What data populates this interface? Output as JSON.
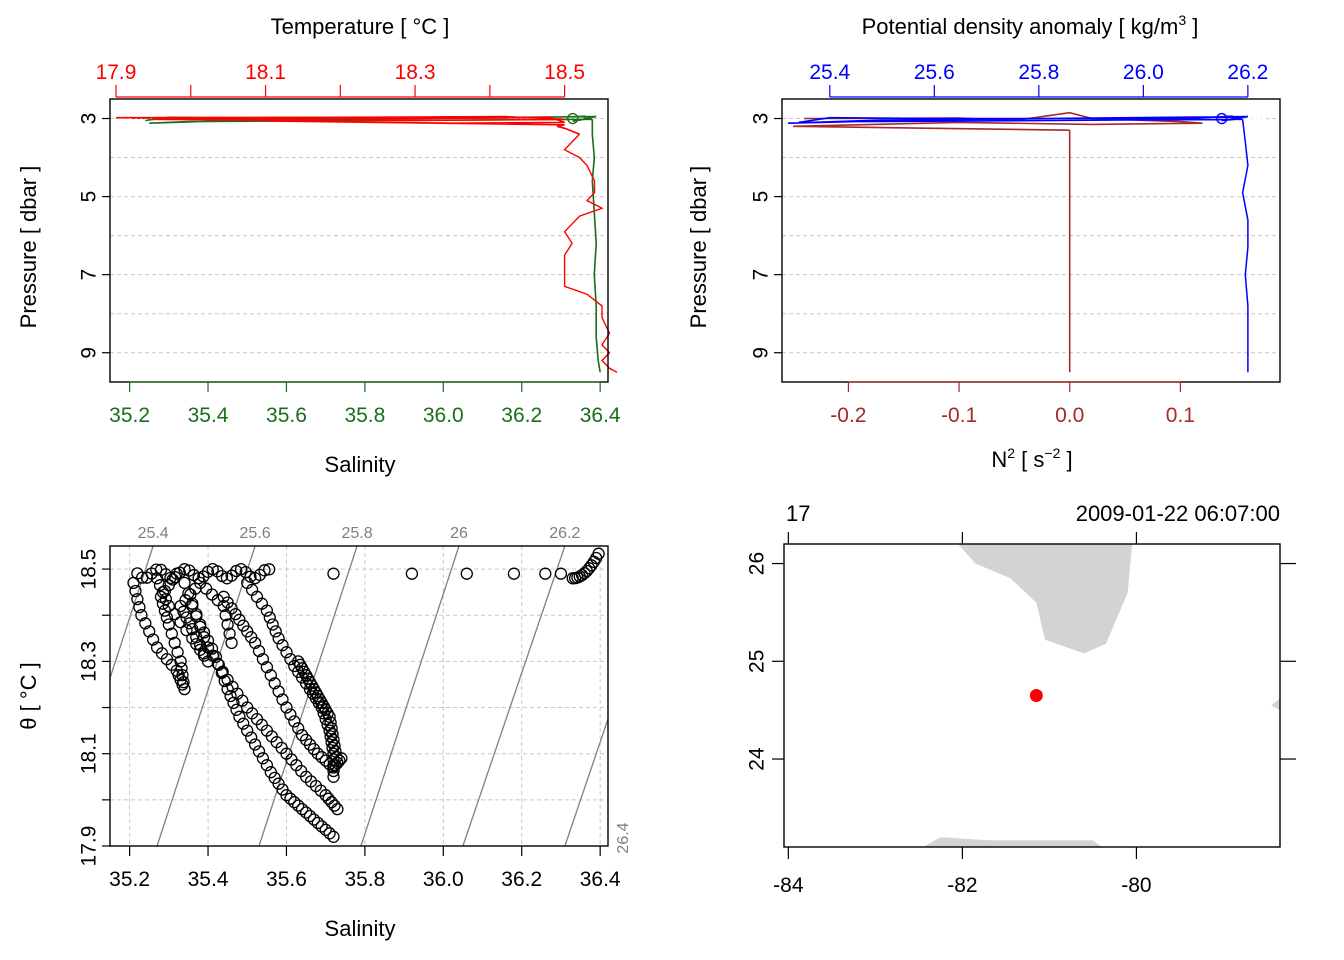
{
  "colors": {
    "temperature": "#ff0000",
    "salinity": "#1a6e1a",
    "density": "#0000ff",
    "n2": "#a52a2a",
    "isopycnal": "#808080",
    "land": "#d3d3d3",
    "station": "#ff0000"
  },
  "panels": {
    "profile_ts": {
      "top_label": "Temperature [ °C ]",
      "bottom_label": "Salinity",
      "left_label": "Pressure [ dbar ]"
    },
    "profile_density": {
      "top_label_main": "Potential density anomaly [ kg/m",
      "top_label_sup": "3",
      "top_label_end": " ]",
      "bottom_label_main": "N",
      "bottom_label_sup1": "2",
      "bottom_label_mid": " [ s",
      "bottom_label_sup2": "−2",
      "bottom_label_end": " ]",
      "left_label": "Pressure [ dbar ]"
    },
    "ts_diagram": {
      "xlabel": "Salinity",
      "ylabel": "θ [ °C ]"
    },
    "map": {
      "header_left": "17",
      "header_right": "2009-01-22 06:07:00"
    }
  },
  "chart_data": [
    {
      "type": "line",
      "name": "profile_ts",
      "y_axis": {
        "range": [
          2.5,
          9.75
        ],
        "reversed": true,
        "ticks": [
          3,
          5,
          7,
          9
        ],
        "gridlines": [
          3,
          4,
          5,
          6,
          7,
          8,
          9
        ]
      },
      "top_axis": {
        "range": [
          17.9,
          18.55
        ],
        "ticks": [
          "17.9",
          "18.1",
          "18.3",
          "18.5"
        ],
        "minor_ticks": [
          18.0,
          18.2,
          18.4
        ]
      },
      "bottom_axis": {
        "range": [
          35.15,
          36.42
        ],
        "ticks": [
          "35.2",
          "35.4",
          "35.6",
          "35.8",
          "36.0",
          "36.2",
          "36.4"
        ]
      },
      "series": [
        {
          "variable": "temperature",
          "surface": [
            [
              17.9,
              2.98
            ],
            [
              18.2,
              2.97
            ],
            [
              18.42,
              2.95
            ],
            [
              18.5,
              3.02
            ],
            [
              18.3,
              3.05
            ],
            [
              18.0,
              3.0
            ],
            [
              17.95,
              3.02
            ],
            [
              18.1,
              3.04
            ],
            [
              18.48,
              2.97
            ],
            [
              18.5,
              3.1
            ],
            [
              18.35,
              3.12
            ],
            [
              18.1,
              3.06
            ],
            [
              18.5,
              3.16
            ],
            [
              18.49,
              3.2
            ],
            [
              18.5,
              3.25
            ],
            [
              18.52,
              3.4
            ]
          ],
          "profile": [
            [
              18.52,
              3.4
            ],
            [
              18.51,
              3.6
            ],
            [
              18.5,
              3.8
            ],
            [
              18.52,
              4.0
            ],
            [
              18.53,
              4.2
            ],
            [
              18.54,
              4.6
            ],
            [
              18.54,
              4.9
            ],
            [
              18.53,
              5.1
            ],
            [
              18.55,
              5.3
            ],
            [
              18.52,
              5.5
            ],
            [
              18.5,
              5.9
            ],
            [
              18.51,
              6.2
            ],
            [
              18.5,
              6.5
            ],
            [
              18.5,
              7.0
            ],
            [
              18.5,
              7.3
            ],
            [
              18.53,
              7.5
            ],
            [
              18.55,
              7.8
            ],
            [
              18.55,
              8.1
            ],
            [
              18.56,
              8.5
            ],
            [
              18.55,
              8.8
            ],
            [
              18.56,
              9.0
            ],
            [
              18.55,
              9.2
            ],
            [
              18.56,
              9.4
            ],
            [
              18.57,
              9.5
            ]
          ]
        },
        {
          "variable": "salinity",
          "surface": [
            [
              35.24,
              3.05
            ],
            [
              35.3,
              2.97
            ],
            [
              35.4,
              2.98
            ],
            [
              35.6,
              3.0
            ],
            [
              35.8,
              3.0
            ],
            [
              36.1,
              2.99
            ],
            [
              36.3,
              2.97
            ],
            [
              36.36,
              2.94
            ],
            [
              36.36,
              3.02
            ],
            [
              36.33,
              3.07
            ],
            [
              36.39,
              2.95
            ],
            [
              35.5,
              3.04
            ],
            [
              35.25,
              3.12
            ],
            [
              35.35,
              3.08
            ],
            [
              36.38,
              3.02
            ]
          ],
          "profile": [
            [
              36.38,
              3.02
            ],
            [
              36.38,
              3.4
            ],
            [
              36.385,
              4.0
            ],
            [
              36.38,
              4.6
            ],
            [
              36.385,
              5.4
            ],
            [
              36.39,
              6.2
            ],
            [
              36.385,
              7.0
            ],
            [
              36.39,
              7.8
            ],
            [
              36.39,
              8.6
            ],
            [
              36.395,
              9.2
            ],
            [
              36.4,
              9.5
            ]
          ]
        }
      ]
    },
    {
      "type": "line",
      "name": "profile_density",
      "y_axis": {
        "range": [
          2.5,
          9.75
        ],
        "reversed": true,
        "ticks": [
          3,
          5,
          7,
          9
        ],
        "gridlines": [
          3,
          4,
          5,
          6,
          7,
          8,
          9
        ]
      },
      "top_axis": {
        "range": [
          25.32,
          26.25
        ],
        "ticks": [
          "25.4",
          "25.6",
          "25.8",
          "26.0",
          "26.2"
        ]
      },
      "bottom_axis": {
        "range": [
          -0.26,
          0.19
        ],
        "ticks": [
          "-0.2",
          "-0.1",
          "0.0",
          "0.1"
        ]
      },
      "series": [
        {
          "variable": "density",
          "surface": [
            [
              25.34,
              3.1
            ],
            [
              25.4,
              2.98
            ],
            [
              25.6,
              3.0
            ],
            [
              25.9,
              3.0
            ],
            [
              26.1,
              2.99
            ],
            [
              26.17,
              2.94
            ],
            [
              26.18,
              3.02
            ],
            [
              26.15,
              3.05
            ],
            [
              26.2,
              2.95
            ],
            [
              25.5,
              3.04
            ],
            [
              25.32,
              3.12
            ],
            [
              25.45,
              3.08
            ],
            [
              26.19,
              3.02
            ]
          ],
          "profile": [
            [
              26.19,
              3.02
            ],
            [
              26.195,
              3.6
            ],
            [
              26.2,
              4.2
            ],
            [
              26.19,
              4.9
            ],
            [
              26.2,
              5.6
            ],
            [
              26.2,
              6.3
            ],
            [
              26.195,
              7.0
            ],
            [
              26.2,
              7.8
            ],
            [
              26.2,
              8.6
            ],
            [
              26.2,
              9.5
            ]
          ]
        },
        {
          "variable": "N2",
          "surface": [
            [
              -0.24,
              3.0
            ],
            [
              -0.1,
              2.99
            ],
            [
              -0.05,
              3.05
            ],
            [
              0.0,
              2.85
            ],
            [
              0.02,
              3.0
            ],
            [
              0.1,
              3.08
            ],
            [
              0.12,
              3.12
            ],
            [
              0.02,
              3.15
            ],
            [
              -0.1,
              3.1
            ],
            [
              -0.25,
              3.2
            ],
            [
              0.0,
              3.3
            ]
          ],
          "profile": [
            [
              0.0,
              3.3
            ],
            [
              0.0,
              4.0
            ],
            [
              0.0,
              5.0
            ],
            [
              0.0,
              6.0
            ],
            [
              0.0,
              7.0
            ],
            [
              0.0,
              8.0
            ],
            [
              0.0,
              9.0
            ],
            [
              0.0,
              9.5
            ]
          ]
        }
      ]
    },
    {
      "type": "scatter",
      "name": "ts_diagram",
      "x_axis": {
        "range": [
          35.15,
          36.42
        ],
        "ticks": [
          "35.2",
          "35.4",
          "35.6",
          "35.8",
          "36.0",
          "36.2",
          "36.4"
        ]
      },
      "y_axis": {
        "range": [
          17.9,
          18.55
        ],
        "ticks": [
          "17.9",
          "18.1",
          "18.3",
          "18.5"
        ],
        "minor_ticks": [
          18.0,
          18.2,
          18.4
        ]
      },
      "isopycnals": [
        {
          "label": "25.4",
          "S_bottom": 35.01,
          "S_top": 35.26
        },
        {
          "label": "25.6",
          "S_bottom": 35.27,
          "S_top": 35.52
        },
        {
          "label": "25.8",
          "S_bottom": 35.53,
          "S_top": 35.78
        },
        {
          "label": "26",
          "S_bottom": 35.79,
          "S_top": 36.04
        },
        {
          "label": "26.2",
          "S_bottom": 36.05,
          "S_top": 36.31
        },
        {
          "label": "26.4",
          "S_bottom": 36.31,
          "S_top": 36.57
        }
      ],
      "points_upper_row": {
        "S_from": 35.22,
        "S_to": 35.56,
        "theta": [
          18.48,
          18.5
        ]
      },
      "points_isolated": [
        [
          35.72,
          18.49
        ],
        [
          35.92,
          18.49
        ],
        [
          36.06,
          18.49
        ],
        [
          36.18,
          18.49
        ],
        [
          36.26,
          18.49
        ],
        [
          36.3,
          18.49
        ]
      ],
      "points_cluster_right": {
        "S_from": 36.33,
        "S_to": 36.4,
        "theta": [
          18.48,
          18.54
        ]
      },
      "loops": [
        [
          [
            35.21,
            18.47
          ],
          [
            35.23,
            18.4
          ],
          [
            35.27,
            18.33
          ],
          [
            35.32,
            18.28
          ],
          [
            35.34,
            18.24
          ],
          [
            35.33,
            18.3
          ],
          [
            35.3,
            18.38
          ],
          [
            35.28,
            18.44
          ],
          [
            35.32,
            18.49
          ]
        ],
        [
          [
            35.27,
            18.48
          ],
          [
            35.3,
            18.42
          ],
          [
            35.36,
            18.35
          ],
          [
            35.4,
            18.3
          ],
          [
            35.36,
            18.37
          ],
          [
            35.33,
            18.42
          ],
          [
            35.38,
            18.47
          ],
          [
            35.44,
            18.42
          ],
          [
            35.46,
            18.34
          ]
        ],
        [
          [
            35.34,
            18.47
          ],
          [
            35.38,
            18.38
          ],
          [
            35.42,
            18.31
          ],
          [
            35.45,
            18.24
          ],
          [
            35.48,
            18.18
          ],
          [
            35.52,
            18.12
          ],
          [
            35.56,
            18.06
          ],
          [
            35.6,
            18.01
          ],
          [
            35.64,
            17.98
          ],
          [
            35.68,
            17.95
          ],
          [
            35.72,
            17.92
          ]
        ],
        [
          [
            35.36,
            18.42
          ],
          [
            35.4,
            18.33
          ],
          [
            35.45,
            18.26
          ],
          [
            35.5,
            18.2
          ],
          [
            35.55,
            18.15
          ],
          [
            35.6,
            18.1
          ],
          [
            35.65,
            18.05
          ],
          [
            35.7,
            18.01
          ],
          [
            35.73,
            17.98
          ]
        ],
        [
          [
            35.44,
            18.44
          ],
          [
            35.48,
            18.39
          ],
          [
            35.52,
            18.34
          ],
          [
            35.56,
            18.27
          ],
          [
            35.6,
            18.2
          ],
          [
            35.64,
            18.14
          ],
          [
            35.68,
            18.1
          ],
          [
            35.72,
            18.07
          ],
          [
            35.74,
            18.09
          ]
        ],
        [
          [
            35.5,
            18.47
          ],
          [
            35.55,
            18.41
          ],
          [
            35.58,
            18.35
          ],
          [
            35.62,
            18.29
          ],
          [
            35.66,
            18.24
          ],
          [
            35.69,
            18.2
          ],
          [
            35.71,
            18.15
          ],
          [
            35.72,
            18.1
          ],
          [
            35.72,
            18.05
          ]
        ],
        [
          [
            35.63,
            18.3
          ],
          [
            35.65,
            18.27
          ],
          [
            35.67,
            18.24
          ],
          [
            35.69,
            18.21
          ],
          [
            35.71,
            18.18
          ],
          [
            35.72,
            18.13
          ],
          [
            35.73,
            18.08
          ]
        ]
      ]
    },
    {
      "type": "map",
      "name": "station_map",
      "x_axis": {
        "range": [
          -84.05,
          -78.35
        ],
        "ticks": [
          "-84",
          "-82",
          "-80"
        ]
      },
      "y_axis": {
        "range": [
          23.1,
          26.2
        ],
        "ticks": [
          "24",
          "25",
          "26"
        ]
      },
      "land": [
        [
          [
            -82.05,
            26.2
          ],
          [
            -80.05,
            26.2
          ],
          [
            -80.1,
            25.7
          ],
          [
            -80.35,
            25.18
          ],
          [
            -80.6,
            25.08
          ],
          [
            -81.05,
            25.22
          ],
          [
            -81.15,
            25.6
          ],
          [
            -81.45,
            25.85
          ],
          [
            -81.85,
            26.0
          ],
          [
            -82.05,
            26.2
          ]
        ],
        [
          [
            -82.45,
            23.1
          ],
          [
            -82.25,
            23.2
          ],
          [
            -81.7,
            23.17
          ],
          [
            -80.5,
            23.17
          ],
          [
            -80.4,
            23.1
          ]
        ],
        [
          [
            -78.35,
            24.62
          ],
          [
            -78.45,
            24.55
          ],
          [
            -78.35,
            24.5
          ]
        ]
      ],
      "station": [
        -81.15,
        24.65
      ]
    }
  ]
}
